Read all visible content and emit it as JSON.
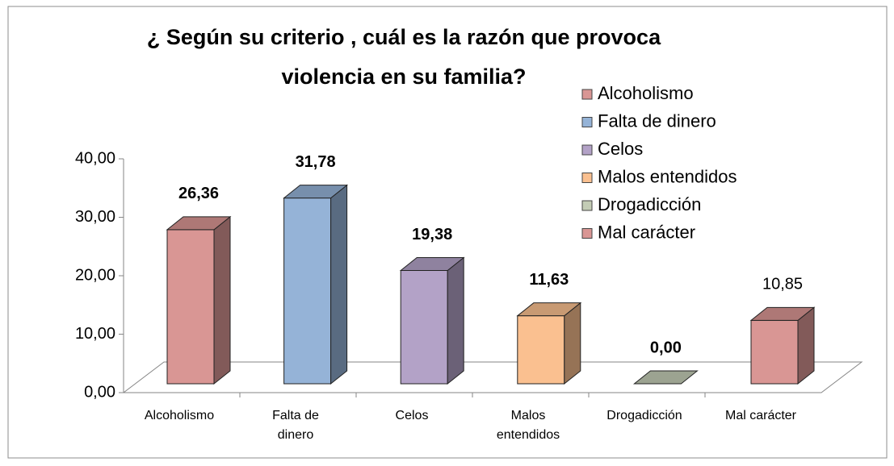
{
  "chart_data": {
    "type": "bar3d",
    "title": "¿ Según su criterio , cuál es la razón  que provoca violencia en su familia?",
    "categories": [
      "Alcoholismo",
      "Falta de dinero",
      "Celos",
      "Malos entendidos",
      "Drogadicción",
      "Mal carácter"
    ],
    "values": [
      26.36,
      31.78,
      19.38,
      11.63,
      0,
      10.85
    ],
    "value_labels": [
      "26,36",
      "31,78",
      "19,38",
      "11,63",
      "0,00",
      "10,85"
    ],
    "value_label_bold": [
      true,
      true,
      true,
      true,
      true,
      false
    ],
    "colors": [
      "#d99694",
      "#95b3d7",
      "#b3a2c7",
      "#fac090",
      "#c3ccb5",
      "#d99694"
    ],
    "ylim": [
      0,
      40
    ],
    "yticks": [
      {
        "value": 0,
        "label": "0,00"
      },
      {
        "value": 10,
        "label": "10,00"
      },
      {
        "value": 20,
        "label": "20,00"
      },
      {
        "value": 30,
        "label": "30,00"
      },
      {
        "value": 40,
        "label": "40,00"
      }
    ],
    "legend": "top-right"
  }
}
